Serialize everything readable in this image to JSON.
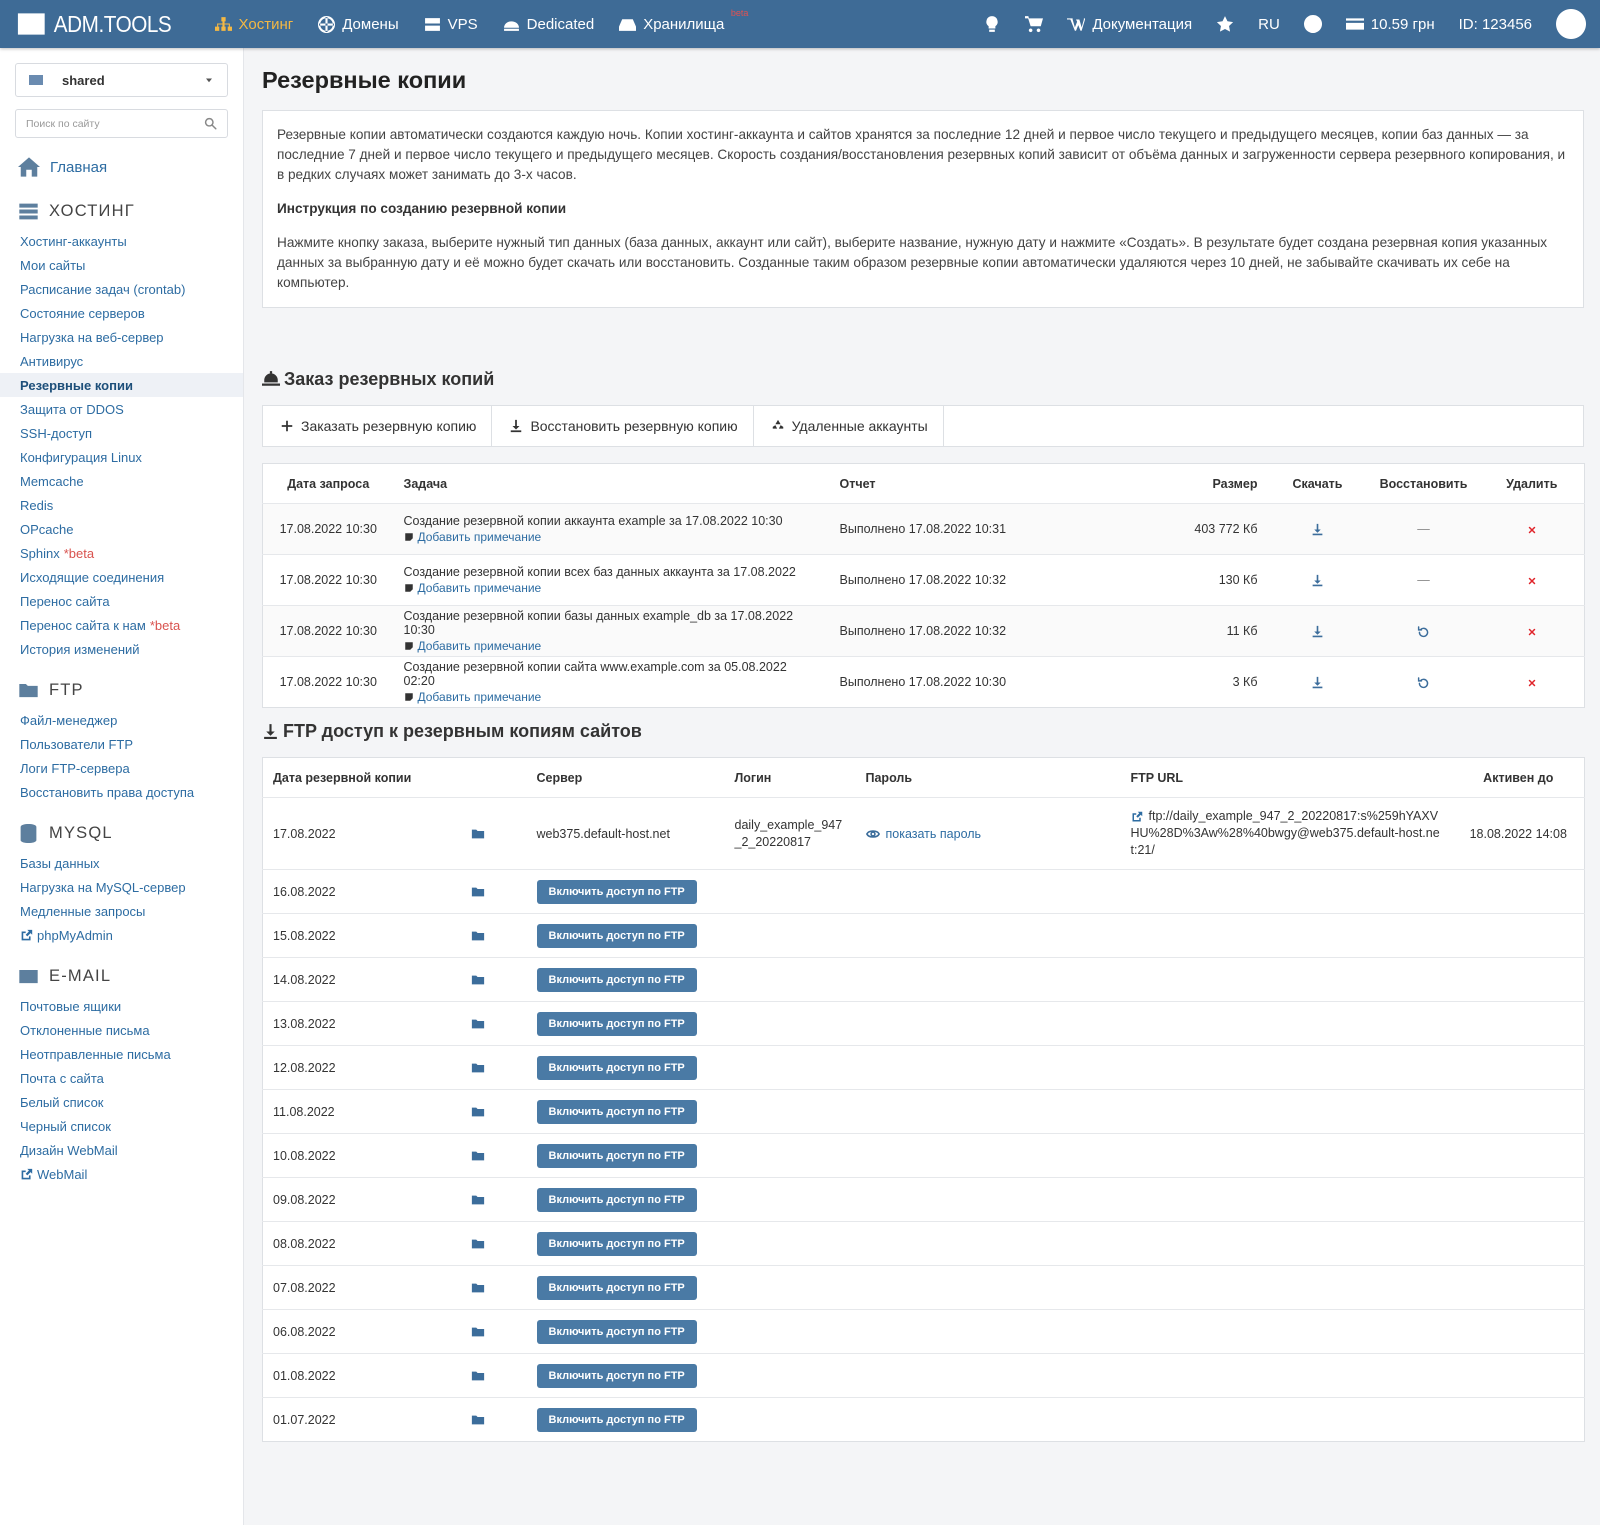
{
  "nav": {
    "logo": "ADM.TOOLS",
    "items": [
      "Хостинг",
      "Домены",
      "VPS",
      "Dedicated",
      "Хранилища"
    ],
    "active": 0,
    "storage_badge": "beta",
    "docs": "Документация",
    "lang": "RU",
    "balance": "10.59 грн",
    "id": "ID: 123456"
  },
  "sidebar": {
    "account": "shared",
    "search_placeholder": "Поиск по сайту",
    "home": "Главная",
    "active": {
      "section": 0,
      "link": 6
    },
    "sections": [
      {
        "title": "ХОСТИНГ",
        "links": [
          "Хостинг-аккаунты",
          "Мои сайты",
          "Расписание задач (crontab)",
          "Состояние серверов",
          "Нагрузка на веб-сервер",
          "Антивирус",
          "Резервные копии",
          "Защита от DDOS",
          "SSH-доступ",
          "Конфигурация Linux",
          "Memcache",
          "Redis",
          "OPcache",
          {
            "text": "Sphinx",
            "badge": "*beta"
          },
          "Исходящие соединения",
          "Перенос сайта",
          {
            "text": "Перенос сайта к нам",
            "badge": "*beta"
          },
          "История изменений"
        ]
      },
      {
        "title": "FTP",
        "links": [
          "Файл-менеджер",
          "Пользователи FTP",
          "Логи FTP-сервера",
          "Восстановить права доступа"
        ]
      },
      {
        "title": "MYSQL",
        "links": [
          "Базы данных",
          "Нагрузка на MySQL-сервер",
          "Медленные запросы",
          {
            "text": "phpMyAdmin",
            "external": true
          }
        ]
      },
      {
        "title": "E-MAIL",
        "links": [
          "Почтовые ящики",
          "Отклоненные письма",
          "Неотправленные письма",
          "Почта с сайта",
          "Белый список",
          "Черный список",
          "Дизайн WebMail",
          {
            "text": "WebMail",
            "external": true
          }
        ]
      }
    ]
  },
  "page": {
    "title": "Резервные копии",
    "info": {
      "p1": "Резервные копии автоматически создаются каждую ночь. Копии хостинг-аккаунта и сайтов хранятся за последние 12 дней и первое число текущего и предыдущего месяцев, копии баз данных — за последние 7 дней и первое число текущего и предыдущего месяцев. Скорость создания/восстановления резервных копий зависит от объёма данных и загруженности сервера резервного копирования, и в редких случаях может занимать до 3-х часов.",
      "heading": "Инструкция по созданию резервной копии",
      "p2": "Нажмите кнопку заказа, выберите нужный тип данных (база данных, аккаунт или сайт), выберите название, нужную дату и нажмите «Создать». В результате будет создана резервная копия указанных данных за выбранную дату и её можно будет скачать или восстановить. Созданные таким образом резервные копии автоматически удаляются через 10 дней, не забывайте скачивать их себе на компьютер."
    },
    "order": {
      "title": "Заказ резервных копий",
      "buttons": [
        "Заказать резервную копию",
        "Восстановить резервную копию",
        "Удаленные аккаунты"
      ],
      "headers": [
        "Дата запроса",
        "Задача",
        "Отчет",
        "Размер",
        "Скачать",
        "Восстановить",
        "Удалить"
      ],
      "rows": [
        {
          "date": "17.08.2022 10:30",
          "task": "Создание резервной копии аккаунта example за 17.08.2022 10:30",
          "note": "Добавить примечание",
          "report": "Выполнено 17.08.2022 10:31",
          "size": "403 772 Кб",
          "restore": "—"
        },
        {
          "date": "17.08.2022 10:30",
          "task": "Создание резервной копии всех баз данных аккаунта за 17.08.2022",
          "note": "Добавить примечание",
          "report": "Выполнено 17.08.2022 10:32",
          "size": "130 Кб",
          "restore": "—"
        },
        {
          "date": "17.08.2022 10:30",
          "task": "Создание резервной копии базы данных example_db за 17.08.2022 10:30",
          "note": "Добавить примечание",
          "report": "Выполнено 17.08.2022 10:32",
          "size": "11 Кб",
          "restore": true
        },
        {
          "date": "17.08.2022 10:30",
          "task": "Создание резервной копии сайта www.example.com за 05.08.2022 02:20",
          "note": "Добавить примечание",
          "report": "Выполнено 17.08.2022 10:30",
          "size": "3 Кб",
          "restore": true
        }
      ]
    },
    "ftp": {
      "title": "FTP доступ к резервным копиям сайтов",
      "headers": [
        "Дата резервной копии",
        "Сервер",
        "Логин",
        "Пароль",
        "FTP URL",
        "Активен до"
      ],
      "rows": [
        {
          "date": "17.08.2022",
          "server": "web375.default-host.net",
          "login": "daily_example_947_2_20220817",
          "password": "показать пароль",
          "url": "ftp://daily_example_947_2_20220817:s%259hYAXVHU%28D%3Aw%28%40bwgy@web375.default-host.net:21/",
          "active_until": "18.08.2022 14:08"
        },
        {
          "date": "16.08.2022",
          "button": "Включить доступ по FTP"
        },
        {
          "date": "15.08.2022",
          "button": "Включить доступ по FTP"
        },
        {
          "date": "14.08.2022",
          "button": "Включить доступ по FTP"
        },
        {
          "date": "13.08.2022",
          "button": "Включить доступ по FTP"
        },
        {
          "date": "12.08.2022",
          "button": "Включить доступ по FTP"
        },
        {
          "date": "11.08.2022",
          "button": "Включить доступ по FTP"
        },
        {
          "date": "10.08.2022",
          "button": "Включить доступ по FTP"
        },
        {
          "date": "09.08.2022",
          "button": "Включить доступ по FTP"
        },
        {
          "date": "08.08.2022",
          "button": "Включить доступ по FTP"
        },
        {
          "date": "07.08.2022",
          "button": "Включить доступ по FTP"
        },
        {
          "date": "06.08.2022",
          "button": "Включить доступ по FTP"
        },
        {
          "date": "01.08.2022",
          "button": "Включить доступ по FTP"
        },
        {
          "date": "01.07.2022",
          "button": "Включить доступ по FTP"
        }
      ]
    }
  }
}
